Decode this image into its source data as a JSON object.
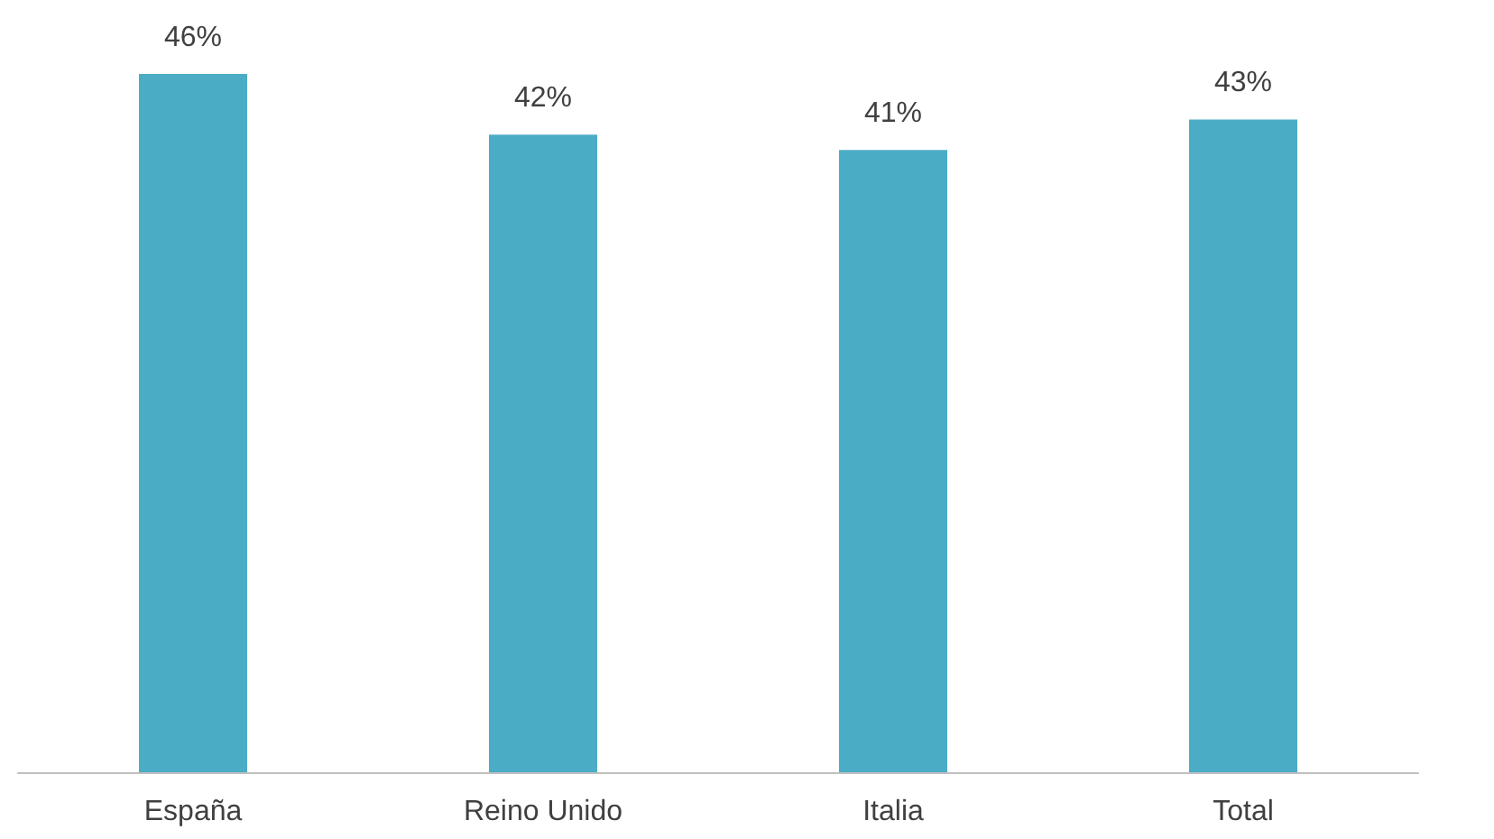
{
  "chart_data": {
    "type": "bar",
    "categories": [
      "España",
      "Reino Unido",
      "Italia",
      "Total"
    ],
    "values": [
      46,
      42,
      41,
      43
    ],
    "value_labels": [
      "46%",
      "42%",
      "41%",
      "43%"
    ],
    "color": "#4bacc6",
    "ylim": [
      0,
      46
    ],
    "tick_labels": "x",
    "grid": false
  }
}
